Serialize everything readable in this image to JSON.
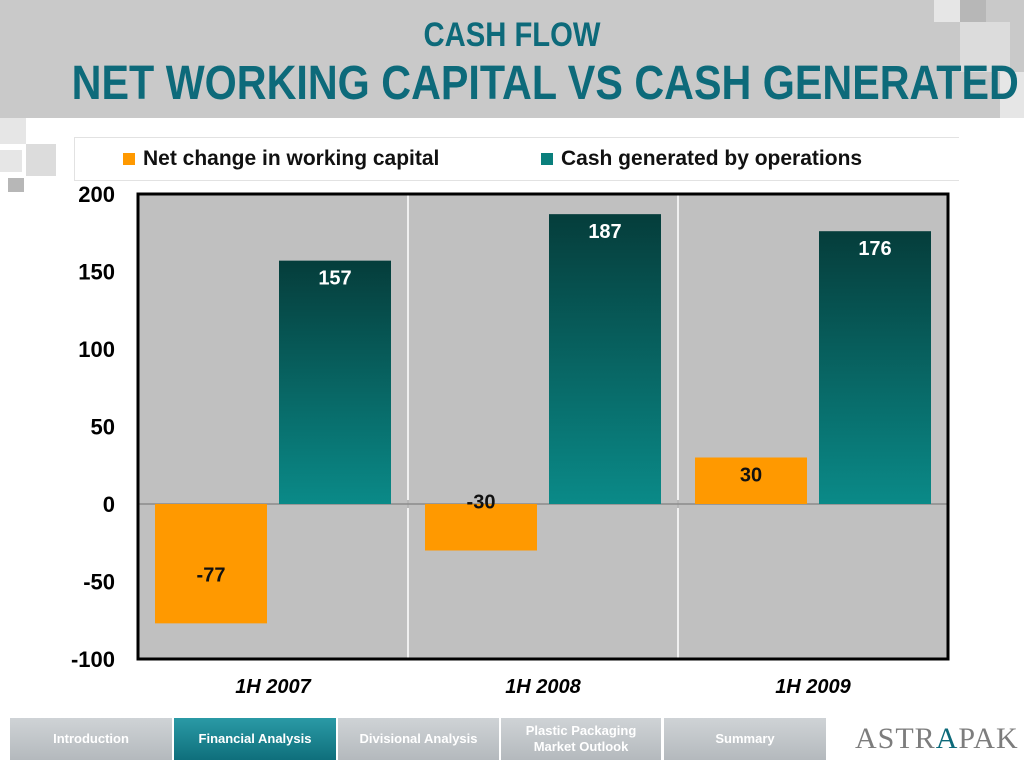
{
  "slide": {
    "title_line1": "CASH FLOW",
    "title_line2": "NET WORKING CAPITAL VS CASH GENERATED"
  },
  "colors": {
    "accent": "#0d6a7a",
    "orange": "#ff9900",
    "teal_top": "#053d3b",
    "teal_bottom": "#0a8a88",
    "plot_bg": "#c0c0c0"
  },
  "chart_data": {
    "type": "bar",
    "categories": [
      "1H 2007",
      "1H 2008",
      "1H 2009"
    ],
    "series": [
      {
        "name": "Net change in working capital",
        "values": [
          -77,
          -30,
          30
        ],
        "labels": [
          "-77",
          "-30",
          "30"
        ],
        "color": "#ff9900"
      },
      {
        "name": "Cash generated by operations",
        "values": [
          157,
          187,
          176
        ],
        "labels": [
          "157",
          "187",
          "176"
        ],
        "color": "#0a7f7c"
      }
    ],
    "ylim": [
      -100,
      200
    ],
    "yticks": [
      200,
      150,
      100,
      50,
      0,
      -50,
      -100
    ],
    "ytick_labels": [
      "200",
      "150",
      "100",
      "50",
      "0",
      "-50",
      "-100"
    ],
    "legend": "top",
    "grid": false
  },
  "nav": {
    "items": [
      {
        "label": "Introduction"
      },
      {
        "label": "Financial Analysis"
      },
      {
        "label": "Divisional Analysis"
      },
      {
        "label": "Plastic Packaging Market Outlook"
      },
      {
        "label": "Summary"
      }
    ]
  },
  "logo": {
    "part1": "ASTR",
    "part2": "A",
    "part3": "PAK"
  }
}
